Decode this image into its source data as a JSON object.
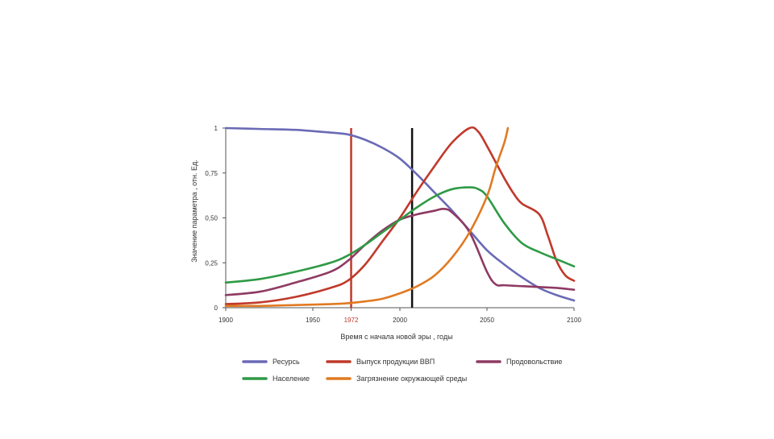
{
  "chart_data": {
    "type": "line",
    "title": "",
    "xlabel": "Время с начала новой эры , годы",
    "ylabel": "Значение параметра , отн. Ед.",
    "xlim": [
      1900,
      2100
    ],
    "ylim": [
      0,
      1
    ],
    "x_ticks": [
      {
        "value": 1900,
        "label": "1900"
      },
      {
        "value": 1950,
        "label": "1950"
      },
      {
        "value": 1972,
        "label": "1972",
        "color": "#c0392b"
      },
      {
        "value": 2000,
        "label": "2000"
      },
      {
        "value": 2050,
        "label": "2050"
      },
      {
        "value": 2100,
        "label": "2100"
      }
    ],
    "y_ticks": [
      {
        "value": 0,
        "label": "0"
      },
      {
        "value": 0.25,
        "label": "0,25"
      },
      {
        "value": 0.5,
        "label": "0,50"
      },
      {
        "value": 0.75,
        "label": "0,75"
      },
      {
        "value": 1,
        "label": "1"
      }
    ],
    "vertical_lines": [
      {
        "name": "year-1972-line",
        "x": 1972,
        "color": "#c0392b"
      },
      {
        "name": "current-year-line",
        "x": 2007,
        "color": "#111111"
      }
    ],
    "series": [
      {
        "name": "Ресурсь",
        "key": "resource",
        "color": "#6a6ab6",
        "points": [
          [
            1900,
            1.0
          ],
          [
            1920,
            0.995
          ],
          [
            1940,
            0.99
          ],
          [
            1960,
            0.975
          ],
          [
            1970,
            0.965
          ],
          [
            1980,
            0.935
          ],
          [
            1990,
            0.89
          ],
          [
            2000,
            0.83
          ],
          [
            2010,
            0.74
          ],
          [
            2020,
            0.64
          ],
          [
            2030,
            0.54
          ],
          [
            2040,
            0.43
          ],
          [
            2050,
            0.32
          ],
          [
            2060,
            0.24
          ],
          [
            2070,
            0.17
          ],
          [
            2080,
            0.11
          ],
          [
            2090,
            0.07
          ],
          [
            2100,
            0.04
          ]
        ]
      },
      {
        "name": "Выпуск продукции ВВП",
        "key": "gdp",
        "color": "#c0392b",
        "points": [
          [
            1900,
            0.02
          ],
          [
            1920,
            0.03
          ],
          [
            1940,
            0.06
          ],
          [
            1960,
            0.11
          ],
          [
            1970,
            0.15
          ],
          [
            1980,
            0.24
          ],
          [
            1990,
            0.37
          ],
          [
            2000,
            0.5
          ],
          [
            2010,
            0.65
          ],
          [
            2020,
            0.79
          ],
          [
            2030,
            0.92
          ],
          [
            2040,
            1.0
          ],
          [
            2045,
            0.98
          ],
          [
            2050,
            0.9
          ],
          [
            2055,
            0.81
          ],
          [
            2060,
            0.72
          ],
          [
            2065,
            0.64
          ],
          [
            2070,
            0.58
          ],
          [
            2080,
            0.52
          ],
          [
            2085,
            0.4
          ],
          [
            2090,
            0.26
          ],
          [
            2095,
            0.18
          ],
          [
            2100,
            0.15
          ]
        ]
      },
      {
        "name": "Продовольствие",
        "key": "food",
        "color": "#8e3a63",
        "points": [
          [
            1900,
            0.07
          ],
          [
            1920,
            0.09
          ],
          [
            1940,
            0.14
          ],
          [
            1960,
            0.2
          ],
          [
            1970,
            0.26
          ],
          [
            1980,
            0.35
          ],
          [
            1990,
            0.43
          ],
          [
            2000,
            0.49
          ],
          [
            2010,
            0.52
          ],
          [
            2020,
            0.54
          ],
          [
            2025,
            0.55
          ],
          [
            2030,
            0.53
          ],
          [
            2040,
            0.42
          ],
          [
            2050,
            0.2
          ],
          [
            2055,
            0.13
          ],
          [
            2060,
            0.125
          ],
          [
            2070,
            0.12
          ],
          [
            2080,
            0.115
          ],
          [
            2090,
            0.11
          ],
          [
            2100,
            0.1
          ]
        ]
      },
      {
        "name": "Население",
        "key": "population",
        "color": "#2e9a45",
        "points": [
          [
            1900,
            0.14
          ],
          [
            1920,
            0.16
          ],
          [
            1940,
            0.2
          ],
          [
            1960,
            0.25
          ],
          [
            1970,
            0.29
          ],
          [
            1980,
            0.35
          ],
          [
            1990,
            0.42
          ],
          [
            2000,
            0.49
          ],
          [
            2010,
            0.56
          ],
          [
            2020,
            0.62
          ],
          [
            2030,
            0.66
          ],
          [
            2040,
            0.67
          ],
          [
            2045,
            0.66
          ],
          [
            2050,
            0.62
          ],
          [
            2060,
            0.47
          ],
          [
            2070,
            0.36
          ],
          [
            2080,
            0.31
          ],
          [
            2090,
            0.27
          ],
          [
            2100,
            0.23
          ]
        ]
      },
      {
        "name": "Загрязнение окружающей среды",
        "key": "pollution",
        "color": "#e07a22",
        "points": [
          [
            1900,
            0.01
          ],
          [
            1920,
            0.01
          ],
          [
            1940,
            0.015
          ],
          [
            1960,
            0.02
          ],
          [
            1970,
            0.025
          ],
          [
            1980,
            0.035
          ],
          [
            1990,
            0.05
          ],
          [
            2000,
            0.08
          ],
          [
            2010,
            0.12
          ],
          [
            2020,
            0.18
          ],
          [
            2030,
            0.28
          ],
          [
            2040,
            0.42
          ],
          [
            2050,
            0.62
          ],
          [
            2055,
            0.78
          ],
          [
            2060,
            0.92
          ],
          [
            2062,
            1.0
          ]
        ]
      }
    ],
    "legend": [
      {
        "label": "Ресурсь",
        "key": "resource",
        "color": "#6a6ab6"
      },
      {
        "label": "Выпуск продукции ВВП",
        "key": "gdp",
        "color": "#c0392b"
      },
      {
        "label": "Продовольствие",
        "key": "food",
        "color": "#8e3a63"
      },
      {
        "label": "Население",
        "key": "population",
        "color": "#2e9a45"
      },
      {
        "label": "Загрязнение окружающей среды",
        "key": "pollution",
        "color": "#e07a22"
      }
    ],
    "legend_position": "bottom",
    "grid": false
  }
}
